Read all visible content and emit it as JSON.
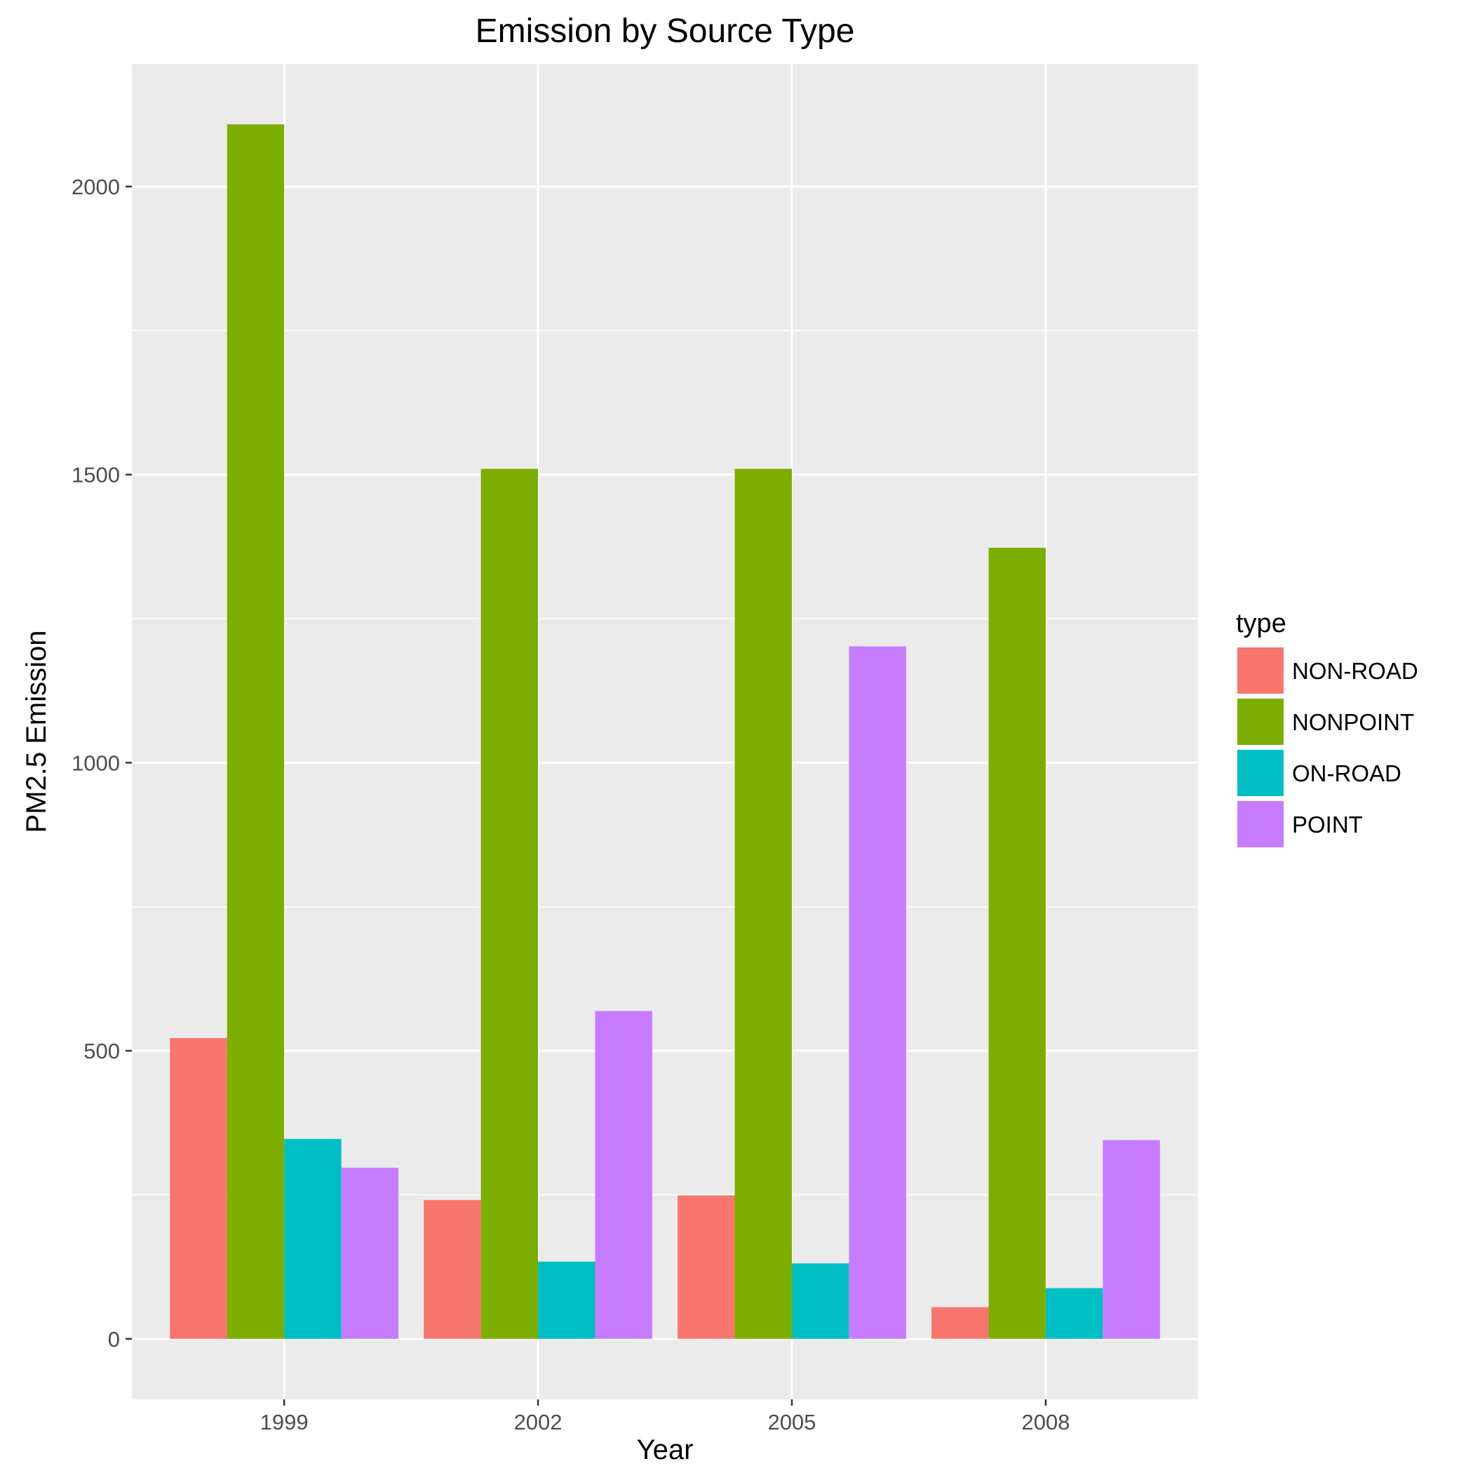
{
  "chart_data": {
    "type": "bar",
    "title": "Emission by Source Type",
    "xlabel": "Year",
    "ylabel": "PM2.5 Emission",
    "categories": [
      "1999",
      "2002",
      "2005",
      "2008"
    ],
    "series": [
      {
        "name": "NON-ROAD",
        "color": "#F8766D",
        "values": [
          522,
          241,
          249,
          55
        ]
      },
      {
        "name": "NONPOINT",
        "color": "#7CAE00",
        "values": [
          2108,
          1510,
          1510,
          1373
        ]
      },
      {
        "name": "ON-ROAD",
        "color": "#00BFC4",
        "values": [
          347,
          134,
          131,
          88
        ]
      },
      {
        "name": "POINT",
        "color": "#C77CFF",
        "values": [
          297,
          569,
          1202,
          345
        ]
      }
    ],
    "ylim": [
      -105,
      2213
    ],
    "yticks": [
      0,
      500,
      1000,
      1500,
      2000
    ],
    "grid": true,
    "legend": {
      "title": "type",
      "position": "right"
    }
  }
}
